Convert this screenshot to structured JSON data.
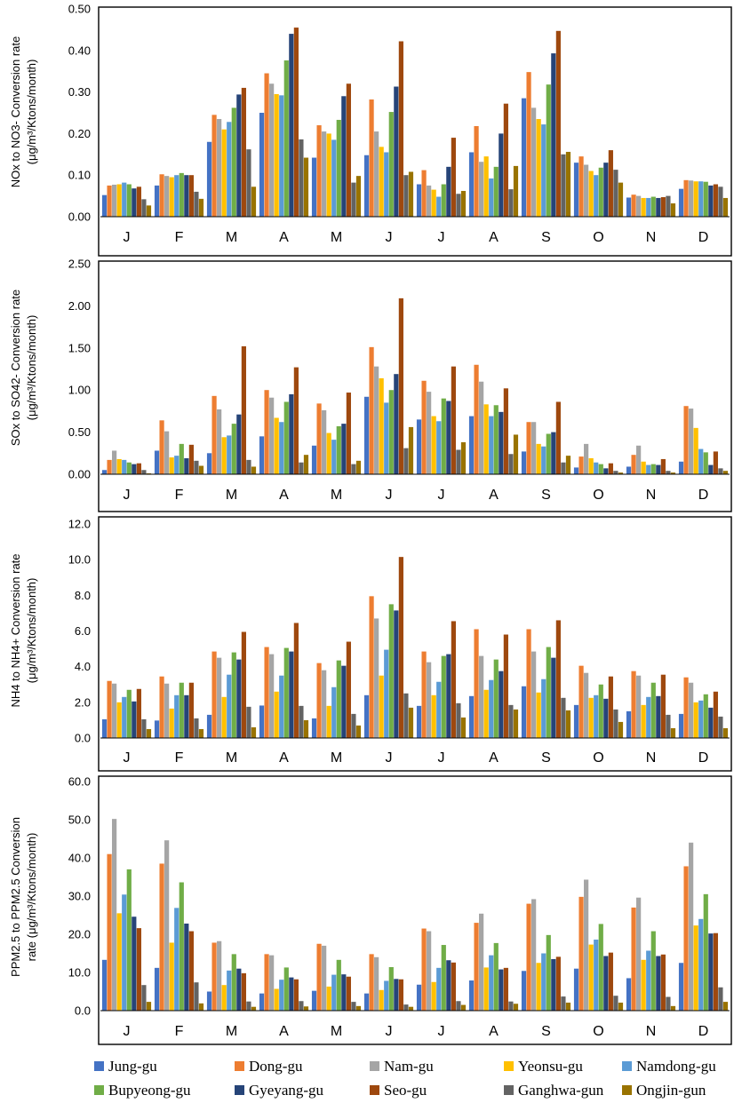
{
  "months": [
    "J",
    "F",
    "M",
    "A",
    "M",
    "J",
    "J",
    "A",
    "S",
    "O",
    "N",
    "D"
  ],
  "legend": [
    {
      "name": "Jung-gu",
      "color": "#4472C4"
    },
    {
      "name": "Dong-gu",
      "color": "#ED7D31"
    },
    {
      "name": "Nam-gu",
      "color": "#A5A5A5"
    },
    {
      "name": "Yeonsu-gu",
      "color": "#FFC000"
    },
    {
      "name": "Namdong-gu",
      "color": "#5B9BD5"
    },
    {
      "name": "Bupyeong-gu",
      "color": "#70AD47"
    },
    {
      "name": "Gyeyang-gu",
      "color": "#264478"
    },
    {
      "name": "Seo-gu",
      "color": "#9E480E"
    },
    {
      "name": "Ganghwa-gun",
      "color": "#636363"
    },
    {
      "name": "Ongjin-gun",
      "color": "#997300"
    }
  ],
  "chart_data": [
    {
      "type": "bar",
      "ylabel_line1": "NOx to NO3- Conversion rate",
      "ylabel_line2": "(μg/m³/Ktons/month)",
      "ylim": [
        0,
        0.5
      ],
      "ticks": [
        "0.00",
        "0.10",
        "0.20",
        "0.30",
        "0.40",
        "0.50"
      ],
      "categories": [
        "J",
        "F",
        "M",
        "A",
        "M",
        "J",
        "J",
        "A",
        "S",
        "O",
        "N",
        "D"
      ],
      "series": [
        {
          "name": "Jung-gu",
          "values": [
            0.052,
            0.075,
            0.18,
            0.25,
            0.142,
            0.148,
            0.078,
            0.155,
            0.285,
            0.13,
            0.046,
            0.067
          ]
        },
        {
          "name": "Dong-gu",
          "values": [
            0.075,
            0.102,
            0.245,
            0.345,
            0.22,
            0.282,
            0.112,
            0.218,
            0.348,
            0.145,
            0.053,
            0.088
          ]
        },
        {
          "name": "Nam-gu",
          "values": [
            0.077,
            0.098,
            0.235,
            0.32,
            0.205,
            0.205,
            0.075,
            0.132,
            0.262,
            0.125,
            0.05,
            0.087
          ]
        },
        {
          "name": "Yeonsu-gu",
          "values": [
            0.078,
            0.095,
            0.21,
            0.295,
            0.2,
            0.168,
            0.065,
            0.145,
            0.235,
            0.11,
            0.045,
            0.085
          ]
        },
        {
          "name": "Namdong-gu",
          "values": [
            0.082,
            0.1,
            0.228,
            0.292,
            0.185,
            0.155,
            0.048,
            0.092,
            0.222,
            0.1,
            0.045,
            0.085
          ]
        },
        {
          "name": "Bupyeong-gu",
          "values": [
            0.078,
            0.105,
            0.262,
            0.376,
            0.233,
            0.252,
            0.078,
            0.12,
            0.318,
            0.118,
            0.048,
            0.084
          ]
        },
        {
          "name": "Gyeyang-gu",
          "values": [
            0.068,
            0.1,
            0.294,
            0.44,
            0.29,
            0.313,
            0.12,
            0.2,
            0.393,
            0.13,
            0.045,
            0.075
          ]
        },
        {
          "name": "Seo-gu",
          "values": [
            0.072,
            0.1,
            0.31,
            0.455,
            0.32,
            0.422,
            0.19,
            0.272,
            0.447,
            0.16,
            0.047,
            0.078
          ]
        },
        {
          "name": "Ganghwa-gun",
          "values": [
            0.042,
            0.06,
            0.162,
            0.186,
            0.082,
            0.1,
            0.055,
            0.066,
            0.15,
            0.113,
            0.05,
            0.072
          ]
        },
        {
          "name": "Ongjin-gun",
          "values": [
            0.027,
            0.043,
            0.072,
            0.142,
            0.098,
            0.108,
            0.062,
            0.122,
            0.156,
            0.082,
            0.032,
            0.045
          ]
        }
      ]
    },
    {
      "type": "bar",
      "ylabel_line1": "SOx to SO42- Conversion rate",
      "ylabel_line2": "(μg/m³/Ktons/month)",
      "ylim": [
        0,
        2.5
      ],
      "ticks": [
        "0.00",
        "0.50",
        "1.00",
        "1.50",
        "2.00",
        "2.50"
      ],
      "categories": [
        "J",
        "F",
        "M",
        "A",
        "M",
        "J",
        "J",
        "A",
        "S",
        "O",
        "N",
        "D"
      ],
      "series": [
        {
          "name": "Jung-gu",
          "values": [
            0.05,
            0.28,
            0.25,
            0.45,
            0.34,
            0.92,
            0.65,
            0.69,
            0.27,
            0.08,
            0.09,
            0.15
          ]
        },
        {
          "name": "Dong-gu",
          "values": [
            0.17,
            0.64,
            0.93,
            1.0,
            0.84,
            1.51,
            1.11,
            1.3,
            0.62,
            0.21,
            0.23,
            0.81
          ]
        },
        {
          "name": "Nam-gu",
          "values": [
            0.28,
            0.51,
            0.77,
            0.91,
            0.76,
            1.28,
            0.98,
            1.1,
            0.62,
            0.36,
            0.34,
            0.78
          ]
        },
        {
          "name": "Yeonsu-gu",
          "values": [
            0.18,
            0.2,
            0.44,
            0.67,
            0.49,
            1.14,
            0.69,
            0.83,
            0.36,
            0.19,
            0.15,
            0.55
          ]
        },
        {
          "name": "Namdong-gu",
          "values": [
            0.17,
            0.22,
            0.46,
            0.62,
            0.41,
            0.85,
            0.63,
            0.69,
            0.33,
            0.14,
            0.11,
            0.3
          ]
        },
        {
          "name": "Bupyeong-gu",
          "values": [
            0.14,
            0.36,
            0.6,
            0.86,
            0.57,
            1.0,
            0.9,
            0.82,
            0.48,
            0.12,
            0.12,
            0.26
          ]
        },
        {
          "name": "Gyeyang-gu",
          "values": [
            0.12,
            0.19,
            0.71,
            0.95,
            0.6,
            1.19,
            0.87,
            0.74,
            0.5,
            0.07,
            0.11,
            0.11
          ]
        },
        {
          "name": "Seo-gu",
          "values": [
            0.13,
            0.35,
            1.52,
            1.27,
            0.97,
            2.09,
            1.28,
            1.02,
            0.86,
            0.13,
            0.18,
            0.27
          ]
        },
        {
          "name": "Ganghwa-gun",
          "values": [
            0.05,
            0.16,
            0.17,
            0.14,
            0.12,
            0.31,
            0.29,
            0.24,
            0.14,
            0.04,
            0.04,
            0.07
          ]
        },
        {
          "name": "Ongjin-gun",
          "values": [
            0.01,
            0.1,
            0.09,
            0.23,
            0.16,
            0.56,
            0.38,
            0.47,
            0.22,
            0.02,
            0.02,
            0.04
          ]
        }
      ]
    },
    {
      "type": "bar",
      "ylabel_line1": "NH4 to NH4+ Conversion rate",
      "ylabel_line2": "(μg/m³/Ktons/month)",
      "ylim": [
        0,
        12
      ],
      "ticks": [
        "0.0",
        "2.0",
        "4.0",
        "6.0",
        "8.0",
        "10.0",
        "12.0"
      ],
      "categories": [
        "J",
        "F",
        "M",
        "A",
        "M",
        "J",
        "J",
        "A",
        "S",
        "O",
        "N",
        "D"
      ],
      "series": [
        {
          "name": "Jung-gu",
          "values": [
            1.05,
            0.98,
            1.3,
            1.82,
            1.1,
            2.4,
            1.8,
            2.35,
            2.9,
            1.85,
            1.5,
            1.35
          ]
        },
        {
          "name": "Dong-gu",
          "values": [
            3.2,
            3.45,
            4.85,
            5.1,
            4.2,
            7.95,
            4.85,
            6.1,
            6.1,
            4.05,
            3.75,
            3.4
          ]
        },
        {
          "name": "Nam-gu",
          "values": [
            3.05,
            3.05,
            4.5,
            4.7,
            3.8,
            6.7,
            4.25,
            4.6,
            4.85,
            3.65,
            3.5,
            3.1
          ]
        },
        {
          "name": "Yeonsu-gu",
          "values": [
            2.0,
            1.65,
            2.3,
            2.6,
            1.8,
            3.5,
            2.4,
            2.7,
            2.55,
            2.25,
            1.85,
            2.0
          ]
        },
        {
          "name": "Namdong-gu",
          "values": [
            2.3,
            2.4,
            3.55,
            3.5,
            2.85,
            4.95,
            3.15,
            3.25,
            3.3,
            2.4,
            2.3,
            2.1
          ]
        },
        {
          "name": "Bupyeong-gu",
          "values": [
            2.7,
            3.1,
            4.8,
            5.05,
            4.35,
            7.5,
            4.6,
            4.4,
            5.1,
            3.0,
            3.1,
            2.45
          ]
        },
        {
          "name": "Gyeyang-gu",
          "values": [
            2.05,
            2.4,
            4.4,
            4.85,
            4.05,
            7.15,
            4.7,
            3.75,
            4.5,
            2.2,
            2.35,
            1.7
          ]
        },
        {
          "name": "Seo-gu",
          "values": [
            2.75,
            3.1,
            5.95,
            6.45,
            5.4,
            10.15,
            6.55,
            5.8,
            6.6,
            3.45,
            3.55,
            2.6
          ]
        },
        {
          "name": "Ganghwa-gun",
          "values": [
            1.05,
            1.1,
            1.75,
            1.8,
            1.35,
            2.5,
            1.95,
            1.85,
            2.25,
            1.6,
            1.3,
            1.2
          ]
        },
        {
          "name": "Ongjin-gun",
          "values": [
            0.5,
            0.5,
            0.6,
            1.0,
            0.7,
            1.7,
            1.15,
            1.6,
            1.55,
            0.9,
            0.55,
            0.55
          ]
        }
      ]
    },
    {
      "type": "bar",
      "ylabel_line1": "PPM2.5 to PPM2.5 Conversion",
      "ylabel_line2": "rate (μg/m³/Ktons/month)",
      "ylim": [
        0,
        60
      ],
      "ticks": [
        "0.0",
        "10.0",
        "20.0",
        "30.0",
        "40.0",
        "50.0",
        "60.0"
      ],
      "categories": [
        "J",
        "F",
        "M",
        "A",
        "M",
        "J",
        "J",
        "A",
        "S",
        "O",
        "N",
        "D"
      ],
      "series": [
        {
          "name": "Jung-gu",
          "values": [
            13.3,
            11.2,
            5.0,
            4.5,
            5.2,
            4.5,
            6.8,
            7.9,
            10.4,
            11.0,
            8.5,
            12.5
          ]
        },
        {
          "name": "Dong-gu",
          "values": [
            41.0,
            38.5,
            17.8,
            14.8,
            17.5,
            14.8,
            21.5,
            23.0,
            28.0,
            29.8,
            27.0,
            37.8
          ]
        },
        {
          "name": "Nam-gu",
          "values": [
            50.2,
            44.6,
            18.2,
            14.5,
            17.0,
            14.0,
            20.8,
            25.4,
            29.2,
            34.3,
            29.6,
            44.0
          ]
        },
        {
          "name": "Yeonsu-gu",
          "values": [
            25.5,
            17.8,
            6.7,
            5.7,
            6.3,
            5.4,
            7.5,
            11.3,
            12.5,
            17.3,
            13.3,
            22.3
          ]
        },
        {
          "name": "Namdong-gu",
          "values": [
            30.4,
            26.9,
            10.5,
            8.1,
            9.4,
            7.8,
            11.2,
            14.5,
            15.0,
            18.6,
            15.7,
            24.0
          ]
        },
        {
          "name": "Bupyeong-gu",
          "values": [
            37.0,
            33.6,
            14.8,
            11.3,
            13.3,
            11.4,
            17.2,
            17.7,
            19.8,
            22.7,
            20.8,
            30.5
          ]
        },
        {
          "name": "Gyeyang-gu",
          "values": [
            24.6,
            22.8,
            11.0,
            8.7,
            9.5,
            8.3,
            13.2,
            10.8,
            13.5,
            14.3,
            14.3,
            20.2
          ]
        },
        {
          "name": "Seo-gu",
          "values": [
            21.6,
            20.8,
            9.8,
            8.2,
            8.9,
            8.2,
            12.6,
            11.2,
            14.1,
            15.2,
            14.7,
            20.3
          ]
        },
        {
          "name": "Ganghwa-gun",
          "values": [
            6.7,
            7.4,
            2.4,
            2.5,
            2.3,
            1.6,
            2.5,
            2.4,
            3.7,
            3.9,
            3.6,
            6.1
          ]
        },
        {
          "name": "Ongjin-gun",
          "values": [
            2.3,
            1.9,
            1.0,
            1.1,
            1.2,
            1.0,
            1.5,
            1.8,
            2.1,
            2.1,
            1.2,
            2.3
          ]
        }
      ]
    }
  ]
}
